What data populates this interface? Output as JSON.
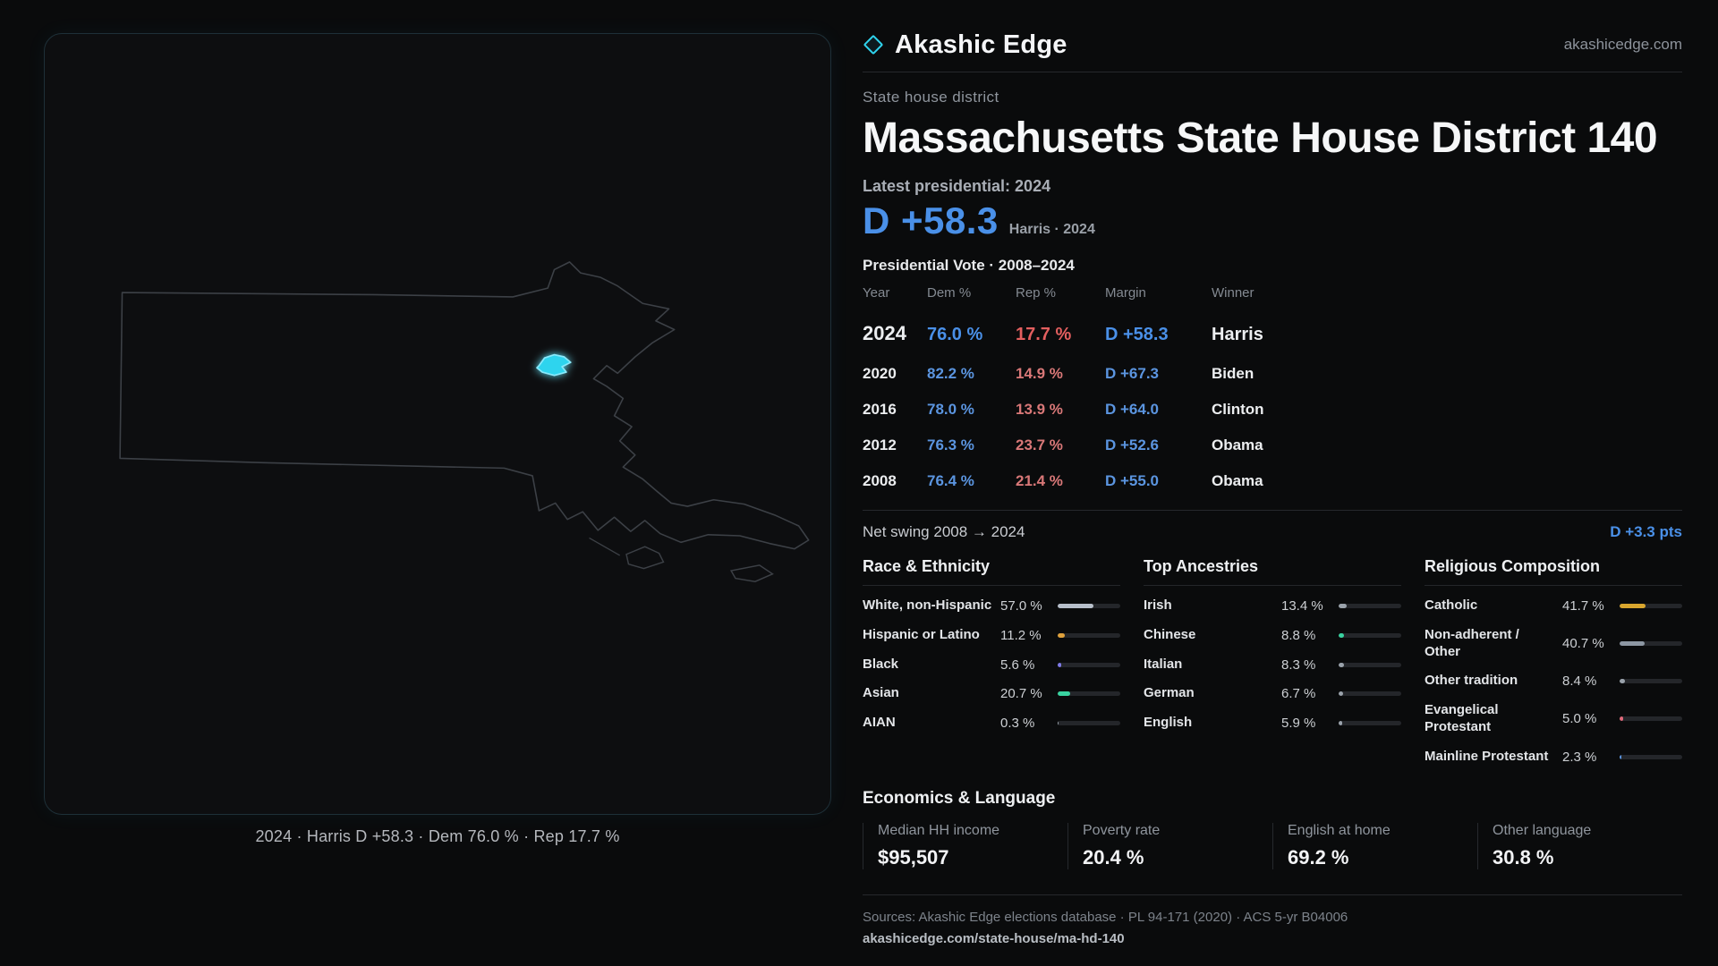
{
  "brand": {
    "name": "Akashic Edge",
    "domain": "akashicedge.com"
  },
  "map": {
    "caption": "2024 · Harris D +58.3 · Dem 76.0 % · Rep 17.7 %",
    "district_color": "#2fd4ee",
    "outline_color": "#3c4046"
  },
  "header": {
    "kicker": "State house district",
    "title": "Massachusetts State House District 140"
  },
  "latest": {
    "label": "Latest presidential: 2024",
    "margin": "D +58.3",
    "sub": "Harris · 2024"
  },
  "vote_table": {
    "title": "Presidential Vote · 2008–2024",
    "columns": [
      "Year",
      "Dem %",
      "Rep %",
      "Margin",
      "Winner"
    ],
    "rows": [
      {
        "year": "2024",
        "dem": "76.0 %",
        "rep": "17.7 %",
        "margin": "D +58.3",
        "winner": "Harris"
      },
      {
        "year": "2020",
        "dem": "82.2 %",
        "rep": "14.9 %",
        "margin": "D +67.3",
        "winner": "Biden"
      },
      {
        "year": "2016",
        "dem": "78.0 %",
        "rep": "13.9 %",
        "margin": "D +64.0",
        "winner": "Clinton"
      },
      {
        "year": "2012",
        "dem": "76.3 %",
        "rep": "23.7 %",
        "margin": "D +52.6",
        "winner": "Obama"
      },
      {
        "year": "2008",
        "dem": "76.4 %",
        "rep": "21.4 %",
        "margin": "D +55.0",
        "winner": "Obama"
      }
    ]
  },
  "net_swing": {
    "label": "Net swing 2008 → 2024",
    "value": "D +3.3 pts"
  },
  "demographics": {
    "race": {
      "title": "Race & Ethnicity",
      "rows": [
        {
          "label": "White, non-Hispanic",
          "value": "57.0 %",
          "pct": 57.0,
          "color": "#b7bfca"
        },
        {
          "label": "Hispanic or Latino",
          "value": "11.2 %",
          "pct": 11.2,
          "color": "#dfa13c"
        },
        {
          "label": "Black",
          "value": "5.6 %",
          "pct": 5.6,
          "color": "#7f7ae8"
        },
        {
          "label": "Asian",
          "value": "20.7 %",
          "pct": 20.7,
          "color": "#39d3a0"
        },
        {
          "label": "AIAN",
          "value": "0.3 %",
          "pct": 0.3,
          "color": "#9aa2ab"
        }
      ]
    },
    "ancestries": {
      "title": "Top Ancestries",
      "rows": [
        {
          "label": "Irish",
          "value": "13.4 %",
          "pct": 13.4,
          "color": "#9aa2ab"
        },
        {
          "label": "Chinese",
          "value": "8.8 %",
          "pct": 8.8,
          "color": "#39d3a0"
        },
        {
          "label": "Italian",
          "value": "8.3 %",
          "pct": 8.3,
          "color": "#9aa2ab"
        },
        {
          "label": "German",
          "value": "6.7 %",
          "pct": 6.7,
          "color": "#9aa2ab"
        },
        {
          "label": "English",
          "value": "5.9 %",
          "pct": 5.9,
          "color": "#9aa2ab"
        }
      ]
    },
    "religion": {
      "title": "Religious Composition",
      "rows": [
        {
          "label": "Catholic",
          "value": "41.7 %",
          "pct": 41.7,
          "color": "#d9a62e"
        },
        {
          "label": "Non-adherent / Other",
          "value": "40.7 %",
          "pct": 40.7,
          "color": "#8d97a3"
        },
        {
          "label": "Other tradition",
          "value": "8.4 %",
          "pct": 8.4,
          "color": "#9aa2ab"
        },
        {
          "label": "Evangelical Protestant",
          "value": "5.0 %",
          "pct": 5.0,
          "color": "#e0697a"
        },
        {
          "label": "Mainline Protestant",
          "value": "2.3 %",
          "pct": 2.3,
          "color": "#5b95e0"
        }
      ]
    }
  },
  "economics": {
    "title": "Economics & Language",
    "stats": [
      {
        "label": "Median HH income",
        "value": "$95,507"
      },
      {
        "label": "Poverty rate",
        "value": "20.4 %"
      },
      {
        "label": "English at home",
        "value": "69.2 %"
      },
      {
        "label": "Other language",
        "value": "30.8 %"
      }
    ]
  },
  "footer": {
    "sources": "Sources: Akashic Edge elections database · PL 94-171 (2020) · ACS 5-yr B04006",
    "permalink": "akashicedge.com/state-house/ma-hd-140"
  },
  "colors": {
    "dem": "#5b95e0",
    "rep": "#d97878",
    "accent": "#2fd4ee",
    "background": "#0a0b0c"
  }
}
